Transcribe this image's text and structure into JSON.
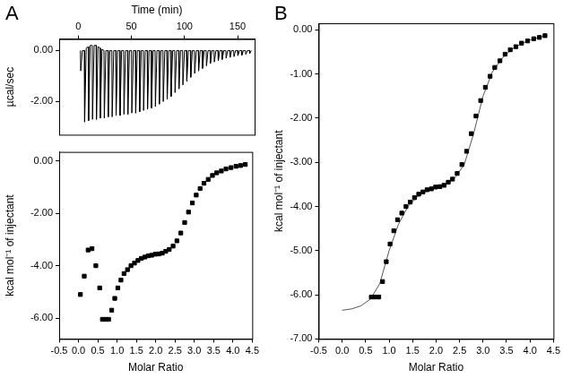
{
  "chart_data": [
    {
      "type": "line",
      "annotations": [
        "A"
      ],
      "xlabel": "Time (min)",
      "ylabel": "µcal/sec",
      "color": "#000000",
      "xlim": [
        -18,
        166
      ],
      "xticks": [
        0,
        50,
        100,
        150
      ],
      "ylim": [
        -3.3,
        0.45
      ],
      "yticks": [
        {
          "value": 0,
          "label": "0.00"
        },
        {
          "value": -2,
          "label": "-2.00"
        }
      ],
      "grid": false,
      "x": [
        2,
        2.3,
        3.8,
        5.7,
        6.0,
        7.5,
        9.4,
        9.7,
        11.2,
        13.1,
        13.4,
        14.9,
        16.8,
        17.1,
        18.6,
        20.5,
        20.8,
        22.3,
        24.2,
        24.5,
        26.0,
        27.9,
        28.2,
        29.7,
        31.6,
        31.9,
        33.4,
        35.3,
        35.6,
        37.1,
        39,
        39.3,
        40.8,
        42.7,
        43.0,
        44.5,
        46.4,
        46.7,
        48.2,
        50.1,
        50.4,
        51.9,
        53.8,
        54.1,
        55.6,
        57.5,
        57.8,
        59.3,
        61.2,
        61.5,
        63.0,
        64.9,
        65.2,
        66.7,
        68.6,
        68.9,
        70.4,
        72.3,
        72.6,
        74.1,
        76,
        76.3,
        77.8,
        79.7,
        80.0,
        81.5,
        83.4,
        83.7,
        85.2,
        87.1,
        87.4,
        88.9,
        90.8,
        91.1,
        92.6,
        94.5,
        94.8,
        96.3,
        98.2,
        98.5,
        100.0,
        101.9,
        102.2,
        103.7,
        105.6,
        105.9,
        107.4,
        109.3,
        109.6,
        111.1,
        113,
        113.3,
        114.8,
        116.7,
        117.0,
        118.5,
        120.4,
        120.7,
        122.2,
        124.1,
        124.4,
        125.9,
        127.8,
        128.1,
        129.6,
        131.5,
        131.8,
        133.3,
        135.2,
        135.5,
        137.0,
        138.9,
        139.2,
        140.7,
        142.6,
        142.9,
        144.4,
        146.3,
        146.6,
        148.1,
        150,
        150.3,
        151.8,
        153.7,
        154.0,
        155.5,
        157.4,
        157.7,
        159.2,
        161.1,
        161.4,
        162.9
      ],
      "values": [
        0,
        -0.8,
        0,
        0,
        -2.8,
        0.1,
        0.15,
        -2.75,
        0.2,
        0.2,
        -2.7,
        0.2,
        0.2,
        -2.7,
        0.15,
        0.1,
        -2.65,
        0.05,
        0,
        -2.65,
        0,
        0,
        -2.6,
        0,
        0,
        -2.6,
        0,
        0,
        -2.55,
        0,
        0,
        -2.55,
        0,
        0,
        -2.5,
        0,
        0,
        -2.5,
        0,
        0,
        -2.45,
        0,
        0,
        -2.45,
        0,
        0,
        -2.4,
        0,
        0,
        -2.35,
        0,
        0,
        -2.3,
        0,
        0,
        -2.25,
        0,
        0,
        -2.2,
        0,
        0,
        -2.1,
        0,
        0,
        -2.0,
        0,
        0,
        -1.9,
        0,
        0,
        -1.8,
        0,
        0,
        -1.65,
        0,
        0,
        -1.5,
        0,
        0,
        -1.35,
        0,
        0,
        -1.2,
        0,
        0,
        -1.05,
        0,
        0,
        -0.9,
        0,
        0,
        -0.8,
        0,
        0,
        -0.7,
        0,
        0,
        -0.6,
        0,
        0,
        -0.5,
        0,
        0,
        -0.45,
        0,
        0,
        -0.4,
        0,
        0,
        -0.35,
        0,
        0,
        -0.3,
        0,
        0,
        -0.27,
        0,
        0,
        -0.24,
        0,
        0,
        -0.2,
        0,
        0,
        -0.18,
        0,
        0,
        -0.15,
        0,
        0,
        -0.12,
        0
      ]
    },
    {
      "type": "scatter",
      "xlabel": "Molar Ratio",
      "ylabel": "kcal mol⁻¹ of injectant",
      "color": "#000000",
      "marker": "square",
      "xlim": [
        -0.5,
        4.5
      ],
      "xticks": [
        -0.5,
        {
          "value": 0,
          "label": "0.0"
        },
        0.5,
        {
          "value": 1,
          "label": "1.0"
        },
        1.5,
        {
          "value": 2,
          "label": "2.0"
        },
        2.5,
        {
          "value": 3,
          "label": "3.0"
        },
        3.5,
        {
          "value": 4,
          "label": "4.0"
        },
        4.5
      ],
      "ylim": [
        -6.8,
        0.35
      ],
      "yticks": [
        {
          "value": 0,
          "label": "0.00"
        },
        {
          "value": -2,
          "label": "-2.00"
        },
        {
          "value": -4,
          "label": "-4.00"
        },
        {
          "value": -6,
          "label": "-6.00"
        }
      ],
      "grid": false,
      "x": [
        0.05,
        0.15,
        0.25,
        0.35,
        0.45,
        0.55,
        0.62,
        0.7,
        0.78,
        0.86,
        0.94,
        1.02,
        1.1,
        1.18,
        1.27,
        1.36,
        1.45,
        1.54,
        1.63,
        1.72,
        1.81,
        1.9,
        1.99,
        2.08,
        2.17,
        2.26,
        2.35,
        2.45,
        2.55,
        2.65,
        2.75,
        2.85,
        2.95,
        3.05,
        3.15,
        3.25,
        3.36,
        3.47,
        3.58,
        3.7,
        3.82,
        3.95,
        4.08,
        4.2,
        4.32
      ],
      "values": [
        -5.1,
        -4.4,
        -3.4,
        -3.35,
        -4.0,
        -4.85,
        -6.05,
        -6.05,
        -6.05,
        -5.7,
        -5.25,
        -4.85,
        -4.55,
        -4.3,
        -4.15,
        -4.0,
        -3.9,
        -3.8,
        -3.72,
        -3.67,
        -3.62,
        -3.6,
        -3.56,
        -3.55,
        -3.52,
        -3.45,
        -3.38,
        -3.25,
        -3.05,
        -2.75,
        -2.35,
        -1.95,
        -1.6,
        -1.3,
        -1.05,
        -0.85,
        -0.7,
        -0.55,
        -0.45,
        -0.38,
        -0.3,
        -0.25,
        -0.2,
        -0.17,
        -0.13
      ]
    },
    {
      "type": "scatter",
      "annotations": [
        "B"
      ],
      "xlabel": "Molar Ratio",
      "ylabel": "kcal mol⁻¹ of injectant",
      "xlim": [
        -0.5,
        4.5
      ],
      "xticks": [
        -0.5,
        {
          "value": 0,
          "label": "0.0"
        },
        0.5,
        {
          "value": 1,
          "label": "1.0"
        },
        1.5,
        {
          "value": 2,
          "label": "2.0"
        },
        2.5,
        {
          "value": 3,
          "label": "3.0"
        },
        3.5,
        {
          "value": 4,
          "label": "4.0"
        },
        4.5
      ],
      "ylim": [
        -7,
        0.15
      ],
      "yticks": [
        {
          "value": 0,
          "label": "0.00"
        },
        {
          "value": -1,
          "label": "-1.00"
        },
        {
          "value": -2,
          "label": "-2.00"
        },
        {
          "value": -3,
          "label": "-3.00"
        },
        {
          "value": -4,
          "label": "-4.00"
        },
        {
          "value": -5,
          "label": "-5.00"
        },
        {
          "value": -6,
          "label": "-6.00"
        },
        {
          "value": -7,
          "label": "-7.00"
        }
      ],
      "grid": false,
      "series": [
        {
          "type": "scatter",
          "marker": "square",
          "color": "#000000",
          "x": [
            0.62,
            0.7,
            0.78,
            0.86,
            0.94,
            1.02,
            1.1,
            1.18,
            1.27,
            1.36,
            1.45,
            1.54,
            1.63,
            1.72,
            1.81,
            1.9,
            1.99,
            2.08,
            2.17,
            2.26,
            2.35,
            2.45,
            2.55,
            2.65,
            2.75,
            2.85,
            2.95,
            3.05,
            3.15,
            3.25,
            3.36,
            3.47,
            3.58,
            3.7,
            3.82,
            3.95,
            4.08,
            4.2,
            4.32
          ],
          "values": [
            -6.05,
            -6.05,
            -6.05,
            -5.7,
            -5.25,
            -4.85,
            -4.55,
            -4.3,
            -4.15,
            -4.0,
            -3.9,
            -3.8,
            -3.72,
            -3.67,
            -3.62,
            -3.6,
            -3.56,
            -3.55,
            -3.52,
            -3.45,
            -3.38,
            -3.25,
            -3.05,
            -2.75,
            -2.35,
            -1.95,
            -1.6,
            -1.3,
            -1.05,
            -0.85,
            -0.7,
            -0.55,
            -0.45,
            -0.38,
            -0.3,
            -0.25,
            -0.2,
            -0.17,
            -0.13
          ]
        },
        {
          "type": "line",
          "line_style": "solid",
          "color": "#555555",
          "x": [
            0,
            0.2,
            0.4,
            0.6,
            0.8,
            1.0,
            1.2,
            1.4,
            1.6,
            1.8,
            2.0,
            2.2,
            2.4,
            2.6,
            2.8,
            3.0,
            3.2,
            3.4,
            3.6,
            3.8,
            4.0,
            4.2,
            4.35
          ],
          "values": [
            -6.35,
            -6.32,
            -6.25,
            -6.1,
            -5.75,
            -5.0,
            -4.4,
            -4.0,
            -3.78,
            -3.65,
            -3.57,
            -3.5,
            -3.35,
            -3.05,
            -2.35,
            -1.5,
            -0.95,
            -0.65,
            -0.45,
            -0.32,
            -0.23,
            -0.17,
            -0.13
          ]
        }
      ]
    }
  ]
}
